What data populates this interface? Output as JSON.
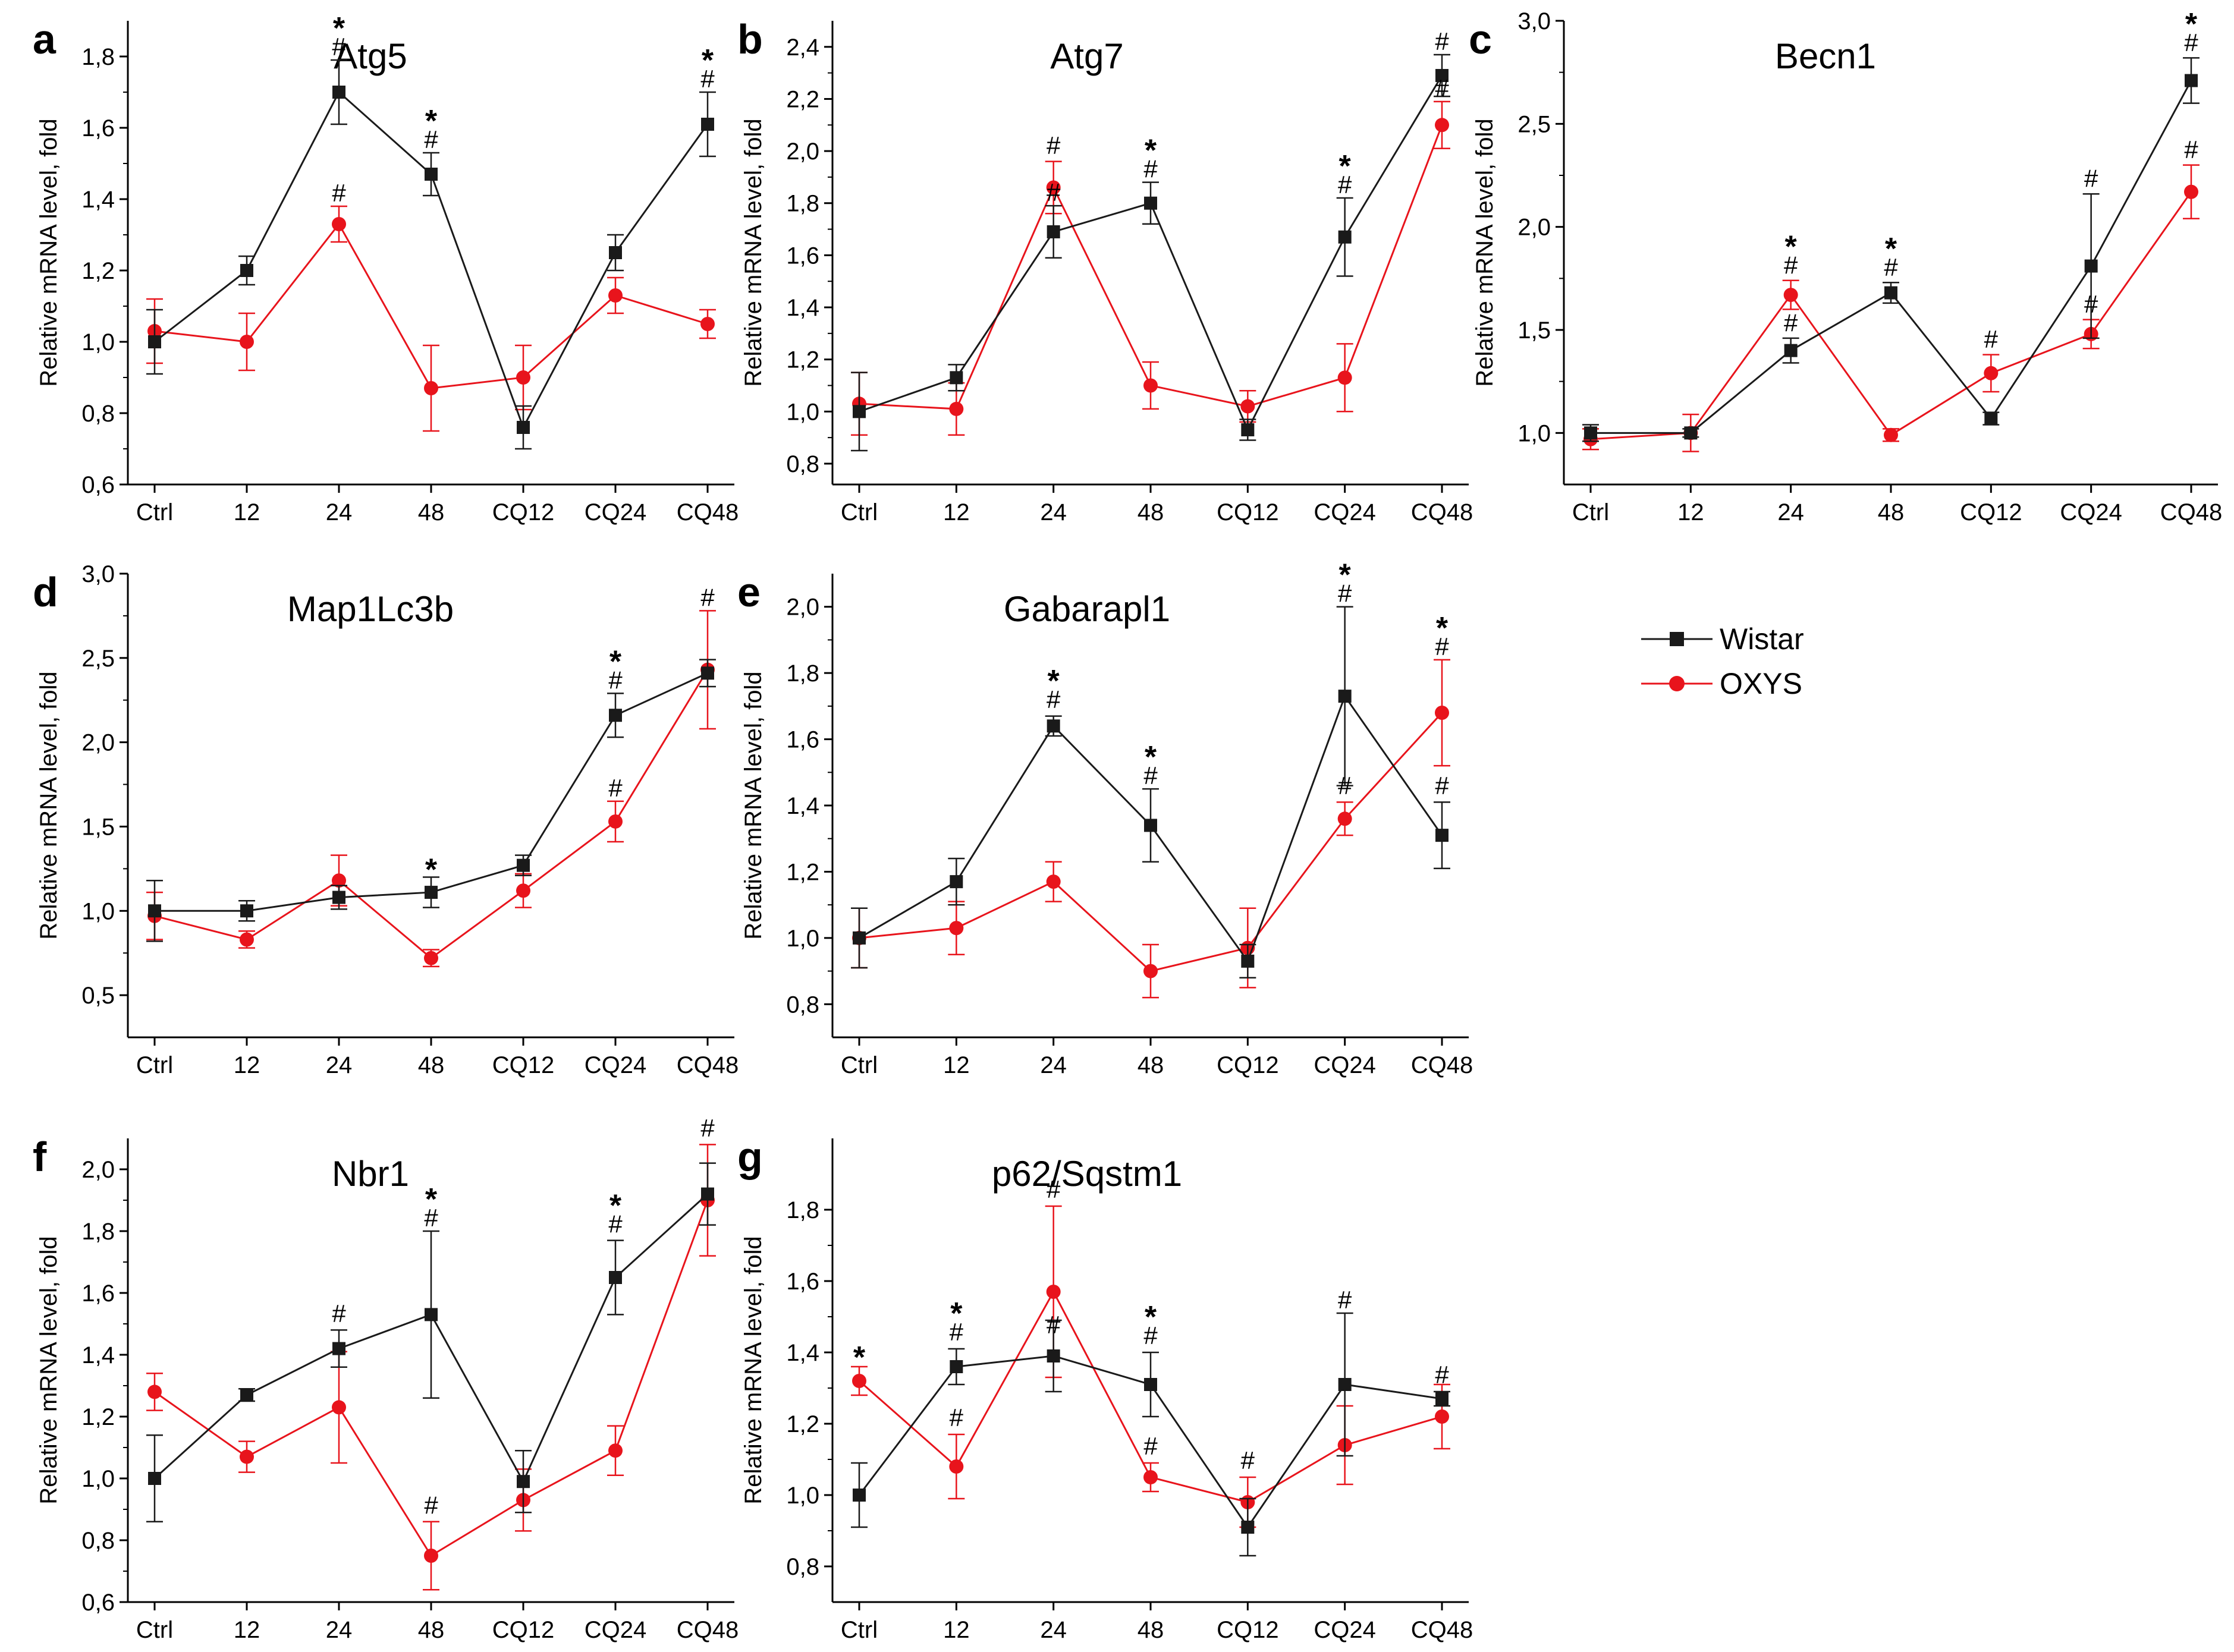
{
  "legend": {
    "entries": [
      {
        "name": "Wistar",
        "color": "#1a1a1a",
        "marker": "square"
      },
      {
        "name": "OXYS",
        "color": "#e8141c",
        "marker": "circle"
      }
    ]
  },
  "chart_data": [
    {
      "letter": "a",
      "type": "line",
      "title": "Atg5",
      "xlabel": "",
      "ylabel": "Relative mRNA level, fold",
      "categories": [
        "Ctrl",
        "12",
        "24",
        "48",
        "CQ12",
        "CQ24",
        "CQ48"
      ],
      "ylim": [
        0.6,
        1.9
      ],
      "yticks": [
        0.6,
        0.8,
        1.0,
        1.2,
        1.4,
        1.6,
        1.8
      ],
      "ytick_labels": [
        "0,6",
        "0,8",
        "1,0",
        "1,2",
        "1,4",
        "1,6",
        "1,8"
      ],
      "series": [
        {
          "name": "Wistar",
          "values": [
            1.0,
            1.2,
            1.7,
            1.47,
            0.76,
            1.25,
            1.61
          ],
          "errors": [
            0.09,
            0.04,
            0.09,
            0.06,
            0.06,
            0.05,
            0.09
          ]
        },
        {
          "name": "OXYS",
          "values": [
            1.03,
            1.0,
            1.33,
            0.87,
            0.9,
            1.13,
            1.05
          ],
          "errors": [
            0.09,
            0.08,
            0.05,
            0.12,
            0.09,
            0.05,
            0.04
          ]
        }
      ],
      "annotations": [
        {
          "index": 2,
          "value": 1.79,
          "symbols": [
            "*",
            "#"
          ]
        },
        {
          "index": 3,
          "value": 1.53,
          "symbols": [
            "*",
            "#"
          ]
        },
        {
          "index": 6,
          "value": 1.7,
          "symbols": [
            "*",
            "#"
          ]
        },
        {
          "index": 2,
          "value": 1.38,
          "symbols": [
            "#"
          ]
        }
      ]
    },
    {
      "letter": "b",
      "type": "line",
      "title": "Atg7",
      "xlabel": "",
      "ylabel": "Relative mRNA level, fold",
      "categories": [
        "Ctrl",
        "12",
        "24",
        "48",
        "CQ12",
        "CQ24",
        "CQ48"
      ],
      "ylim": [
        0.72,
        2.5
      ],
      "yticks": [
        0.8,
        1.0,
        1.2,
        1.4,
        1.6,
        1.8,
        2.0,
        2.2,
        2.4
      ],
      "ytick_labels": [
        "0,8",
        "1,0",
        "1,2",
        "1,4",
        "1,6",
        "1,8",
        "2,0",
        "2,2",
        "2,4"
      ],
      "series": [
        {
          "name": "Wistar",
          "values": [
            1.0,
            1.13,
            1.69,
            1.8,
            0.93,
            1.67,
            2.29
          ],
          "errors": [
            0.15,
            0.05,
            0.1,
            0.08,
            0.04,
            0.15,
            0.08
          ]
        },
        {
          "name": "OXYS",
          "values": [
            1.03,
            1.01,
            1.86,
            1.1,
            1.02,
            1.13,
            2.1
          ],
          "errors": [
            0.12,
            0.1,
            0.1,
            0.09,
            0.06,
            0.13,
            0.09
          ]
        }
      ],
      "annotations": [
        {
          "index": 2,
          "value": 1.97,
          "symbols": [
            "#"
          ]
        },
        {
          "index": 2,
          "value": 1.79,
          "symbols": [
            "#"
          ]
        },
        {
          "index": 3,
          "value": 1.88,
          "symbols": [
            "*",
            "#"
          ]
        },
        {
          "index": 5,
          "value": 1.82,
          "symbols": [
            "*",
            "#"
          ]
        },
        {
          "index": 6,
          "value": 2.37,
          "symbols": [
            "#"
          ]
        },
        {
          "index": 6,
          "value": 2.19,
          "symbols": [
            "#"
          ]
        }
      ]
    },
    {
      "letter": "c",
      "type": "line",
      "title": "Becn1",
      "xlabel": "",
      "ylabel": "Relative mRNA level, fold",
      "categories": [
        "Ctrl",
        "12",
        "24",
        "48",
        "CQ12",
        "CQ24",
        "CQ48"
      ],
      "ylim": [
        0.75,
        3.0
      ],
      "yticks": [
        1.0,
        1.5,
        2.0,
        2.5,
        3.0
      ],
      "ytick_labels": [
        "1,0",
        "1,5",
        "2,0",
        "2,5",
        "3,0"
      ],
      "series": [
        {
          "name": "Wistar",
          "values": [
            1.0,
            1.0,
            1.4,
            1.68,
            1.07,
            1.81,
            2.71
          ],
          "errors": [
            0.04,
            0.02,
            0.06,
            0.05,
            0.03,
            0.35,
            0.11
          ]
        },
        {
          "name": "OXYS",
          "values": [
            0.97,
            1.0,
            1.67,
            0.99,
            1.29,
            1.48,
            2.17
          ],
          "errors": [
            0.05,
            0.09,
            0.07,
            0.03,
            0.09,
            0.07,
            0.13
          ]
        }
      ],
      "annotations": [
        {
          "index": 2,
          "value": 1.47,
          "symbols": [
            "#"
          ]
        },
        {
          "index": 2,
          "value": 1.75,
          "symbols": [
            "*",
            "#"
          ]
        },
        {
          "index": 3,
          "value": 1.74,
          "symbols": [
            "*",
            "#"
          ]
        },
        {
          "index": 4,
          "value": 1.39,
          "symbols": [
            "#"
          ]
        },
        {
          "index": 5,
          "value": 1.56,
          "symbols": [
            "#"
          ]
        },
        {
          "index": 5,
          "value": 2.17,
          "symbols": [
            "#"
          ]
        },
        {
          "index": 6,
          "value": 2.83,
          "symbols": [
            "*",
            "#"
          ]
        },
        {
          "index": 6,
          "value": 2.31,
          "symbols": [
            "#"
          ]
        }
      ]
    },
    {
      "letter": "d",
      "type": "line",
      "title": "Map1Lc3b",
      "xlabel": "",
      "ylabel": "Relative mRNA level, fold",
      "categories": [
        "Ctrl",
        "12",
        "24",
        "48",
        "CQ12",
        "CQ24",
        "CQ48"
      ],
      "ylim": [
        0.25,
        3.0
      ],
      "yticks": [
        0.5,
        1.0,
        1.5,
        2.0,
        2.5,
        3.0
      ],
      "ytick_labels": [
        "0,5",
        "1,0",
        "1,5",
        "2,0",
        "2,5",
        "3,0"
      ],
      "series": [
        {
          "name": "Wistar",
          "values": [
            1.0,
            1.0,
            1.08,
            1.11,
            1.27,
            2.16,
            2.41
          ],
          "errors": [
            0.18,
            0.06,
            0.07,
            0.09,
            0.06,
            0.13,
            0.08
          ]
        },
        {
          "name": "OXYS",
          "values": [
            0.97,
            0.83,
            1.18,
            0.72,
            1.12,
            1.53,
            2.43
          ],
          "errors": [
            0.14,
            0.05,
            0.15,
            0.05,
            0.1,
            0.12,
            0.35
          ]
        }
      ],
      "annotations": [
        {
          "index": 3,
          "value": 1.21,
          "symbols": [
            "*"
          ]
        },
        {
          "index": 5,
          "value": 2.29,
          "symbols": [
            "*",
            "#"
          ]
        },
        {
          "index": 5,
          "value": 1.65,
          "symbols": [
            "#"
          ]
        },
        {
          "index": 6,
          "value": 2.78,
          "symbols": [
            "#"
          ]
        }
      ]
    },
    {
      "letter": "e",
      "type": "line",
      "title": "Gabarapl1",
      "xlabel": "",
      "ylabel": "Relative mRNA level, fold",
      "categories": [
        "Ctrl",
        "12",
        "24",
        "48",
        "CQ12",
        "CQ24",
        "CQ48"
      ],
      "ylim": [
        0.7,
        2.1
      ],
      "yticks": [
        0.8,
        1.0,
        1.2,
        1.4,
        1.6,
        1.8,
        2.0
      ],
      "ytick_labels": [
        "0,8",
        "1,0",
        "1,2",
        "1,4",
        "1,6",
        "1,8",
        "2,0"
      ],
      "series": [
        {
          "name": "Wistar",
          "values": [
            1.0,
            1.17,
            1.64,
            1.34,
            0.93,
            1.73,
            1.31
          ],
          "errors": [
            0.09,
            0.07,
            0.03,
            0.11,
            0.05,
            0.27,
            0.1
          ]
        },
        {
          "name": "OXYS",
          "values": [
            1.0,
            1.03,
            1.17,
            0.9,
            0.97,
            1.36,
            1.68
          ],
          "errors": [
            0.09,
            0.08,
            0.06,
            0.08,
            0.12,
            0.05,
            0.16
          ]
        }
      ],
      "annotations": [
        {
          "index": 2,
          "value": 1.68,
          "symbols": [
            "*",
            "#"
          ]
        },
        {
          "index": 3,
          "value": 1.45,
          "symbols": [
            "*",
            "#"
          ]
        },
        {
          "index": 5,
          "value": 2.0,
          "symbols": [
            "*",
            "#"
          ]
        },
        {
          "index": 5,
          "value": 1.42,
          "symbols": [
            "#"
          ]
        },
        {
          "index": 6,
          "value": 1.84,
          "symbols": [
            "*",
            "#"
          ]
        },
        {
          "index": 6,
          "value": 1.42,
          "symbols": [
            "#"
          ]
        }
      ]
    },
    {
      "letter": "f",
      "type": "line",
      "title": "Nbr1",
      "xlabel": "",
      "ylabel": "Relative mRNA level, fold",
      "categories": [
        "Ctrl",
        "12",
        "24",
        "48",
        "CQ12",
        "CQ24",
        "CQ48"
      ],
      "ylim": [
        0.6,
        2.1
      ],
      "yticks": [
        0.6,
        0.8,
        1.0,
        1.2,
        1.4,
        1.6,
        1.8,
        2.0
      ],
      "ytick_labels": [
        "0,6",
        "0,8",
        "1,0",
        "1,2",
        "1,4",
        "1,6",
        "1,8",
        "2,0"
      ],
      "series": [
        {
          "name": "Wistar",
          "values": [
            1.0,
            1.27,
            1.42,
            1.53,
            0.99,
            1.65,
            1.92
          ],
          "errors": [
            0.14,
            0.02,
            0.06,
            0.27,
            0.1,
            0.12,
            0.1
          ]
        },
        {
          "name": "OXYS",
          "values": [
            1.28,
            1.07,
            1.23,
            0.75,
            0.93,
            1.09,
            1.9
          ],
          "errors": [
            0.06,
            0.05,
            0.18,
            0.11,
            0.1,
            0.08,
            0.18
          ]
        }
      ],
      "annotations": [
        {
          "index": 2,
          "value": 1.49,
          "symbols": [
            "#"
          ]
        },
        {
          "index": 3,
          "value": 1.8,
          "symbols": [
            "*",
            "#"
          ]
        },
        {
          "index": 3,
          "value": 0.87,
          "symbols": [
            "#"
          ]
        },
        {
          "index": 5,
          "value": 1.78,
          "symbols": [
            "*",
            "#"
          ]
        },
        {
          "index": 6,
          "value": 2.09,
          "symbols": [
            "#"
          ]
        }
      ]
    },
    {
      "letter": "g",
      "type": "line",
      "title": "p62/Sqstm1",
      "xlabel": "",
      "ylabel": "Relative mRNA level, fold",
      "categories": [
        "Ctrl",
        "12",
        "24",
        "48",
        "CQ12",
        "CQ24",
        "CQ48"
      ],
      "ylim": [
        0.7,
        2.0
      ],
      "yticks": [
        0.8,
        1.0,
        1.2,
        1.4,
        1.6,
        1.8
      ],
      "ytick_labels": [
        "0,8",
        "1,0",
        "1,2",
        "1,4",
        "1,6",
        "1,8"
      ],
      "series": [
        {
          "name": "Wistar",
          "values": [
            1.0,
            1.36,
            1.39,
            1.31,
            0.91,
            1.31,
            1.27
          ],
          "errors": [
            0.09,
            0.05,
            0.1,
            0.09,
            0.08,
            0.2,
            0.02
          ]
        },
        {
          "name": "OXYS",
          "values": [
            1.32,
            1.08,
            1.57,
            1.05,
            0.98,
            1.14,
            1.22
          ],
          "errors": [
            0.04,
            0.09,
            0.24,
            0.04,
            0.07,
            0.11,
            0.09
          ]
        }
      ],
      "annotations": [
        {
          "index": 0,
          "value": 1.37,
          "symbols": [
            "*"
          ]
        },
        {
          "index": 1,
          "value": 1.42,
          "symbols": [
            "*",
            "#"
          ]
        },
        {
          "index": 1,
          "value": 1.18,
          "symbols": [
            "#"
          ]
        },
        {
          "index": 2,
          "value": 1.44,
          "symbols": [
            "#"
          ]
        },
        {
          "index": 2,
          "value": 1.82,
          "symbols": [
            "#"
          ]
        },
        {
          "index": 3,
          "value": 1.41,
          "symbols": [
            "*",
            "#"
          ]
        },
        {
          "index": 3,
          "value": 1.1,
          "symbols": [
            "#"
          ]
        },
        {
          "index": 4,
          "value": 1.06,
          "symbols": [
            "#"
          ]
        },
        {
          "index": 5,
          "value": 1.51,
          "symbols": [
            "#"
          ]
        },
        {
          "index": 6,
          "value": 1.3,
          "symbols": [
            "#"
          ]
        }
      ]
    }
  ]
}
